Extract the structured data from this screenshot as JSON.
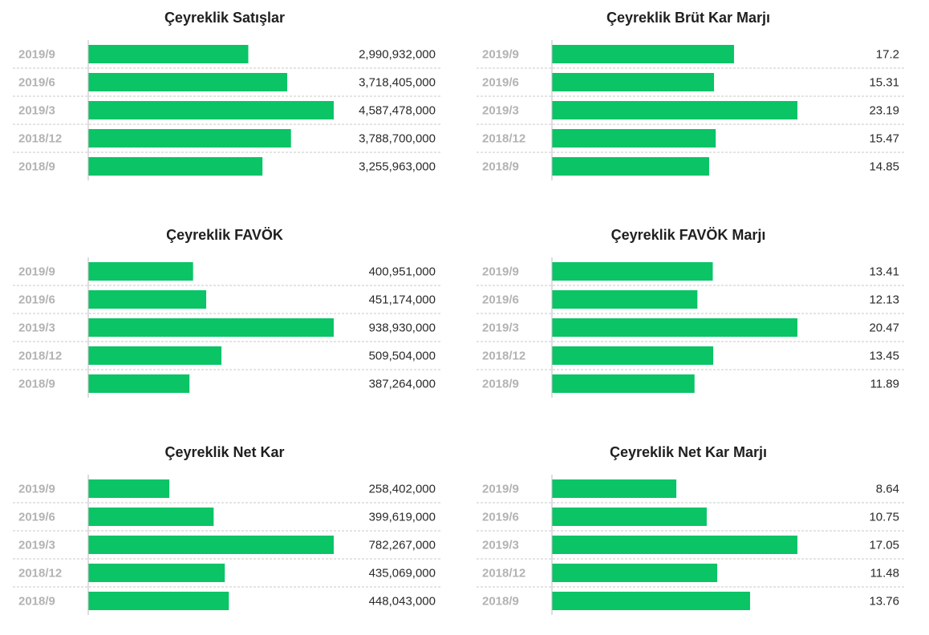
{
  "colors": {
    "bar": "#0ac466",
    "grid": "#c8c8c8",
    "axis": "#bdbdbd"
  },
  "chart_data": [
    {
      "type": "bar",
      "orientation": "horizontal",
      "title": "Çeyreklik Satışlar",
      "categories": [
        "2019/9",
        "2019/6",
        "2019/3",
        "2018/12",
        "2018/9"
      ],
      "values": [
        2990932000,
        3718405000,
        4587478000,
        3788700000,
        3255963000
      ],
      "value_labels": [
        "2,990,932,000",
        "3,718,405,000",
        "4,587,478,000",
        "3,788,700,000",
        "3,255,963,000"
      ]
    },
    {
      "type": "bar",
      "orientation": "horizontal",
      "title": "Çeyreklik Brüt Kar Marjı",
      "categories": [
        "2019/9",
        "2019/6",
        "2019/3",
        "2018/12",
        "2018/9"
      ],
      "values": [
        17.2,
        15.31,
        23.19,
        15.47,
        14.85
      ],
      "value_labels": [
        "17.2",
        "15.31",
        "23.19",
        "15.47",
        "14.85"
      ]
    },
    {
      "type": "bar",
      "orientation": "horizontal",
      "title": "Çeyreklik FAVÖK",
      "categories": [
        "2019/9",
        "2019/6",
        "2019/3",
        "2018/12",
        "2018/9"
      ],
      "values": [
        400951000,
        451174000,
        938930000,
        509504000,
        387264000
      ],
      "value_labels": [
        "400,951,000",
        "451,174,000",
        "938,930,000",
        "509,504,000",
        "387,264,000"
      ]
    },
    {
      "type": "bar",
      "orientation": "horizontal",
      "title": "Çeyreklik FAVÖK Marjı",
      "categories": [
        "2019/9",
        "2019/6",
        "2019/3",
        "2018/12",
        "2018/9"
      ],
      "values": [
        13.41,
        12.13,
        20.47,
        13.45,
        11.89
      ],
      "value_labels": [
        "13.41",
        "12.13",
        "20.47",
        "13.45",
        "11.89"
      ]
    },
    {
      "type": "bar",
      "orientation": "horizontal",
      "title": "Çeyreklik Net Kar",
      "categories": [
        "2019/9",
        "2019/6",
        "2019/3",
        "2018/12",
        "2018/9"
      ],
      "values": [
        258402000,
        399619000,
        782267000,
        435069000,
        448043000
      ],
      "value_labels": [
        "258,402,000",
        "399,619,000",
        "782,267,000",
        "435,069,000",
        "448,043,000"
      ]
    },
    {
      "type": "bar",
      "orientation": "horizontal",
      "title": "Çeyreklik Net Kar Marjı",
      "categories": [
        "2019/9",
        "2019/6",
        "2019/3",
        "2018/12",
        "2018/9"
      ],
      "values": [
        8.64,
        10.75,
        17.05,
        11.48,
        13.76
      ],
      "value_labels": [
        "8.64",
        "10.75",
        "17.05",
        "11.48",
        "13.76"
      ]
    }
  ]
}
